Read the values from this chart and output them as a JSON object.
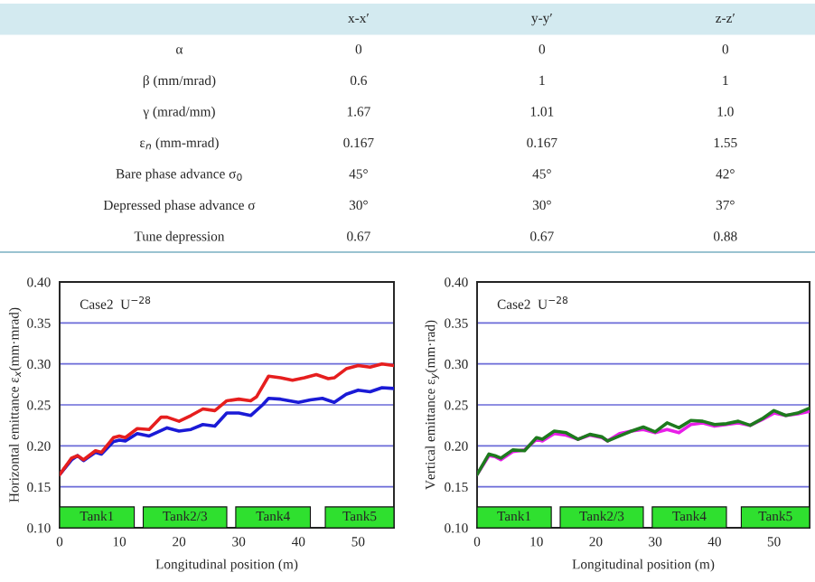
{
  "chart_data": [
    {
      "type": "other",
      "categories": [
        "x-x′",
        "y-y′",
        "z-z′"
      ],
      "y_categories": [
        "α",
        "β (mm/mrad)",
        "γ (mrad/mm)",
        "ε$_{n}$ (mm-mrad)",
        "Bare phase advance σ$_{0}$",
        "Depressed phase advance σ",
        "Tune depression"
      ],
      "cell_labels": [
        [
          "0",
          "0",
          "0"
        ],
        [
          "0.6",
          "1",
          "1"
        ],
        [
          "1.67",
          "1.01",
          "1.0"
        ],
        [
          "0.167",
          "0.167",
          "1.55"
        ],
        [
          "45°",
          "45°",
          "42°"
        ],
        [
          "30°",
          "30°",
          "37°"
        ],
        [
          "0.67",
          "0.67",
          "0.88"
        ]
      ],
      "color": "#d3eaf0"
    },
    {
      "type": "line",
      "xlabel": "Longitudinal position (m)",
      "ylabel": "Horizontal emittance ε$_{x}$(mm·mrad)",
      "annotations": [
        "Case2  U$^{−28}$"
      ],
      "xlim": [
        0,
        56
      ],
      "xticks": [
        0,
        10,
        20,
        30,
        40,
        50
      ],
      "ylim": [
        0.1,
        0.4
      ],
      "yticks": [
        {
          "value": 0.1,
          "label": "0.10"
        },
        {
          "value": 0.15,
          "label": "0.15"
        },
        {
          "value": 0.2,
          "label": "0.20"
        },
        {
          "value": 0.25,
          "label": "0.25"
        },
        {
          "value": 0.3,
          "label": "0.30"
        },
        {
          "value": 0.35,
          "label": "0.35"
        },
        {
          "value": 0.4,
          "label": "0.40"
        }
      ],
      "grid": "y",
      "line_style": "solid",
      "bands": [
        {
          "axis": "x",
          "from": 0,
          "to": 12.5,
          "label": "Tank1",
          "color": "#2fe02f"
        },
        {
          "axis": "x",
          "from": 14,
          "to": 28,
          "label": "Tank2/3",
          "color": "#2fe02f"
        },
        {
          "axis": "x",
          "from": 29.5,
          "to": 42,
          "label": "Tank4",
          "color": "#2fe02f"
        },
        {
          "axis": "x",
          "from": 44.5,
          "to": 56,
          "label": "Tank5",
          "color": "#2fe02f"
        }
      ],
      "series": [
        {
          "color": "#1a1ad6",
          "x": [
            0,
            2,
            3,
            4,
            6,
            7,
            9,
            10,
            11,
            13,
            15,
            18,
            20,
            22,
            24,
            26,
            28,
            30,
            32,
            34,
            35,
            37,
            40,
            42,
            44,
            46,
            48,
            50,
            52,
            54,
            56
          ],
          "values": [
            0.165,
            0.183,
            0.188,
            0.182,
            0.192,
            0.19,
            0.205,
            0.207,
            0.206,
            0.215,
            0.212,
            0.222,
            0.218,
            0.22,
            0.226,
            0.224,
            0.24,
            0.24,
            0.237,
            0.25,
            0.258,
            0.257,
            0.253,
            0.256,
            0.258,
            0.253,
            0.263,
            0.268,
            0.266,
            0.271,
            0.27
          ]
        },
        {
          "color": "#e61e1e",
          "x": [
            0,
            2,
            3,
            4,
            6,
            7,
            9,
            10,
            11,
            13,
            15,
            17,
            18,
            20,
            22,
            24,
            26,
            28,
            30,
            32,
            33,
            35,
            37,
            39,
            41,
            43,
            45,
            46,
            48,
            50,
            52,
            54,
            56
          ],
          "values": [
            0.165,
            0.185,
            0.188,
            0.183,
            0.194,
            0.192,
            0.21,
            0.212,
            0.21,
            0.221,
            0.22,
            0.235,
            0.235,
            0.23,
            0.237,
            0.245,
            0.243,
            0.255,
            0.257,
            0.255,
            0.26,
            0.285,
            0.283,
            0.28,
            0.283,
            0.287,
            0.282,
            0.283,
            0.294,
            0.298,
            0.296,
            0.3,
            0.298
          ]
        }
      ]
    },
    {
      "type": "line",
      "xlabel": "Longitudinal position (m)",
      "ylabel": "Vertical emittance ε$_{y}$(mm·rad)",
      "annotations": [
        "Case2  U$^{−28}$"
      ],
      "xlim": [
        0,
        56
      ],
      "xticks": [
        0,
        10,
        20,
        30,
        40,
        50
      ],
      "ylim": [
        0.1,
        0.4
      ],
      "yticks": [
        {
          "value": 0.1,
          "label": "0.10"
        },
        {
          "value": 0.15,
          "label": "0.15"
        },
        {
          "value": 0.2,
          "label": "0.20"
        },
        {
          "value": 0.25,
          "label": "0.25"
        },
        {
          "value": 0.3,
          "label": "0.30"
        },
        {
          "value": 0.35,
          "label": "0.35"
        },
        {
          "value": 0.4,
          "label": "0.40"
        }
      ],
      "grid": "y",
      "line_style": "solid",
      "bands": [
        {
          "axis": "x",
          "from": 0,
          "to": 12.5,
          "label": "Tank1",
          "color": "#2fe02f"
        },
        {
          "axis": "x",
          "from": 14,
          "to": 28,
          "label": "Tank2/3",
          "color": "#2fe02f"
        },
        {
          "axis": "x",
          "from": 29.5,
          "to": 42,
          "label": "Tank4",
          "color": "#2fe02f"
        },
        {
          "axis": "x",
          "from": 44.5,
          "to": 56,
          "label": "Tank5",
          "color": "#2fe02f"
        }
      ],
      "series": [
        {
          "color": "#e81ee8",
          "x": [
            0,
            2,
            3,
            4,
            6,
            8,
            10,
            11,
            13,
            15,
            17,
            19,
            21,
            22,
            24,
            26,
            28,
            30,
            32,
            34,
            36,
            38,
            40,
            42,
            44,
            46,
            48,
            50,
            52,
            54,
            56
          ],
          "values": [
            0.165,
            0.188,
            0.187,
            0.183,
            0.193,
            0.195,
            0.208,
            0.206,
            0.215,
            0.213,
            0.208,
            0.213,
            0.21,
            0.206,
            0.215,
            0.218,
            0.22,
            0.216,
            0.22,
            0.216,
            0.226,
            0.228,
            0.224,
            0.226,
            0.228,
            0.225,
            0.232,
            0.24,
            0.237,
            0.239,
            0.242
          ]
        },
        {
          "color": "#1e7a1e",
          "x": [
            0,
            2,
            3,
            4,
            6,
            8,
            10,
            11,
            13,
            15,
            17,
            19,
            21,
            22,
            24,
            26,
            28,
            30,
            32,
            34,
            36,
            38,
            40,
            42,
            44,
            46,
            48,
            50,
            52,
            54,
            56
          ],
          "values": [
            0.165,
            0.19,
            0.188,
            0.185,
            0.195,
            0.194,
            0.21,
            0.208,
            0.218,
            0.216,
            0.208,
            0.214,
            0.211,
            0.206,
            0.212,
            0.218,
            0.223,
            0.217,
            0.228,
            0.222,
            0.231,
            0.23,
            0.226,
            0.227,
            0.23,
            0.225,
            0.233,
            0.243,
            0.237,
            0.24,
            0.246
          ]
        }
      ]
    }
  ]
}
